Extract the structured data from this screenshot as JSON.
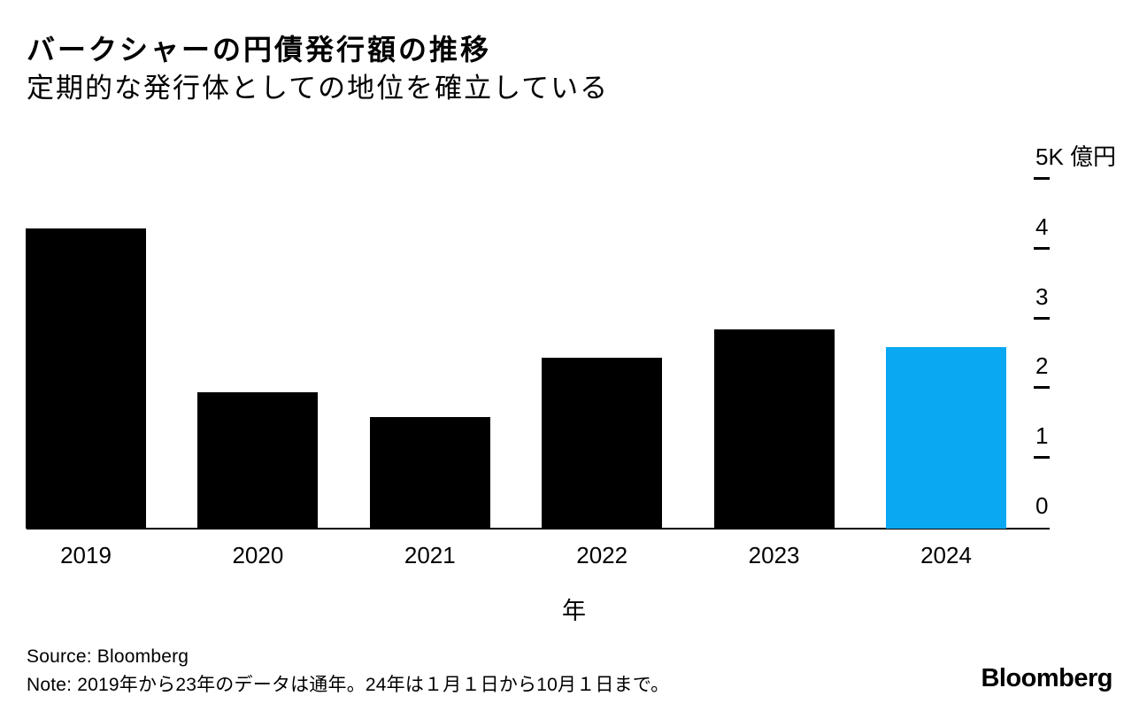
{
  "header": {
    "title": "バークシャーの円債発行額の推移",
    "subtitle": "定期的な発行体としての地位を確立している"
  },
  "footer": {
    "source": "Source: Bloomberg",
    "note": "Note: 2019年から23年のデータは通年。24年は１月１日から10月１日まで。",
    "brand_logo": "Bloomberg"
  },
  "chart_data": {
    "type": "bar",
    "title": "バークシャーの円債発行額の推移",
    "subtitle": "定期的な発行体としての地位を確立している",
    "categories": [
      "2019",
      "2020",
      "2021",
      "2022",
      "2023",
      "2024"
    ],
    "values": [
      4.3,
      1.95,
      1.6,
      2.45,
      2.85,
      2.6
    ],
    "unit": "K億円",
    "xlabel": "年",
    "ylabel": "5K 億円",
    "ylim": [
      0,
      5
    ],
    "yticks": [
      {
        "value": 5,
        "label": "5K 億円"
      },
      {
        "value": 4,
        "label": "4"
      },
      {
        "value": 3,
        "label": "3"
      },
      {
        "value": 2,
        "label": "2"
      },
      {
        "value": 1,
        "label": "1"
      },
      {
        "value": 0,
        "label": "0"
      }
    ],
    "grid": false,
    "legend": false,
    "y_axis_side": "right",
    "bar_color": "#000000",
    "highlight_color": "#0AA8F2",
    "highlight_index": 5,
    "text_color": "#000000"
  }
}
